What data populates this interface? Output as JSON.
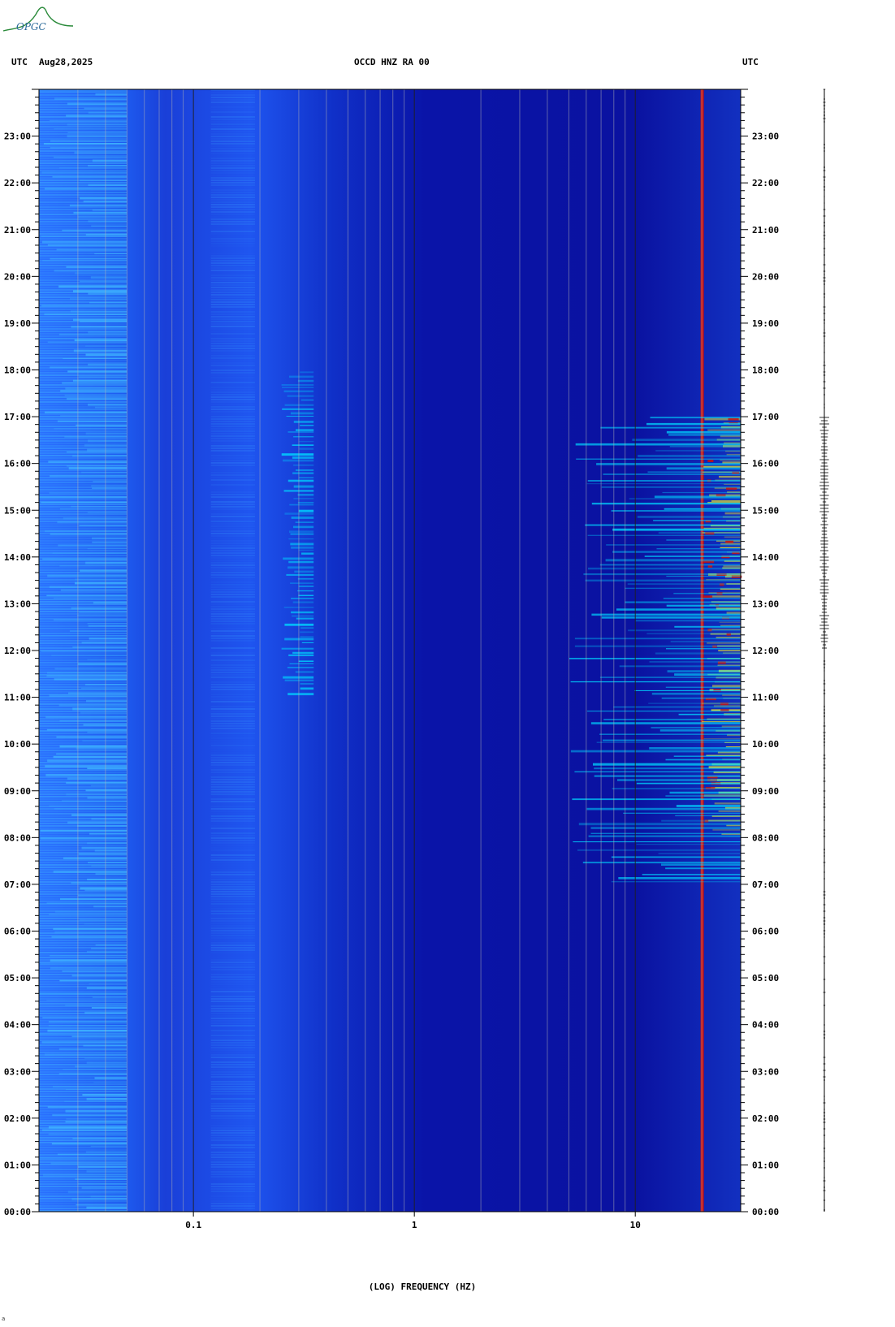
{
  "header": {
    "left_utc": "UTC",
    "date": "Aug28,2025",
    "station": "OCCD HNZ RA 00",
    "right_utc": "UTC"
  },
  "logo_text": "OPGC",
  "footer_mark": "a",
  "colors": {
    "background_low": "#0a0fa0",
    "mid": "#1a60ff",
    "cyan": "#00d8ff",
    "yellow": "#f8f020",
    "red": "#c81010",
    "grid": "#b4b4b4"
  },
  "chart_data": {
    "type": "heatmap",
    "title": "OCCD HNZ RA 00",
    "xlabel": "(LOG) FREQUENCY (HZ)",
    "ylabel": "UTC",
    "x_scale": "log",
    "xlim": [
      0.02,
      30
    ],
    "x_ticks": [
      {
        "value": 0.1,
        "label": "0.1"
      },
      {
        "value": 1,
        "label": "1"
      },
      {
        "value": 10,
        "label": "10"
      }
    ],
    "y_ticks": [
      "00:00",
      "01:00",
      "02:00",
      "03:00",
      "04:00",
      "05:00",
      "06:00",
      "07:00",
      "08:00",
      "09:00",
      "10:00",
      "11:00",
      "12:00",
      "13:00",
      "14:00",
      "15:00",
      "16:00",
      "17:00",
      "18:00",
      "19:00",
      "20:00",
      "21:00",
      "22:00",
      "23:00"
    ],
    "ylim_hours": [
      0,
      24
    ],
    "features": [
      {
        "frequency_hz": 20,
        "hours": [
          0,
          24
        ],
        "level": "red"
      },
      {
        "frequency_range_hz": [
          20,
          30
        ],
        "hours": [
          8,
          17
        ],
        "level": "yellow-red"
      },
      {
        "frequency_range_hz": [
          5,
          30
        ],
        "hours": [
          7,
          17
        ],
        "level": "cyan"
      },
      {
        "frequency_range_hz": [
          0.02,
          0.05
        ],
        "hours": [
          0,
          24
        ],
        "level": "light-blue"
      },
      {
        "frequency_range_hz": [
          0.25,
          0.35
        ],
        "hours": [
          11,
          18
        ],
        "level": "cyan"
      }
    ]
  }
}
